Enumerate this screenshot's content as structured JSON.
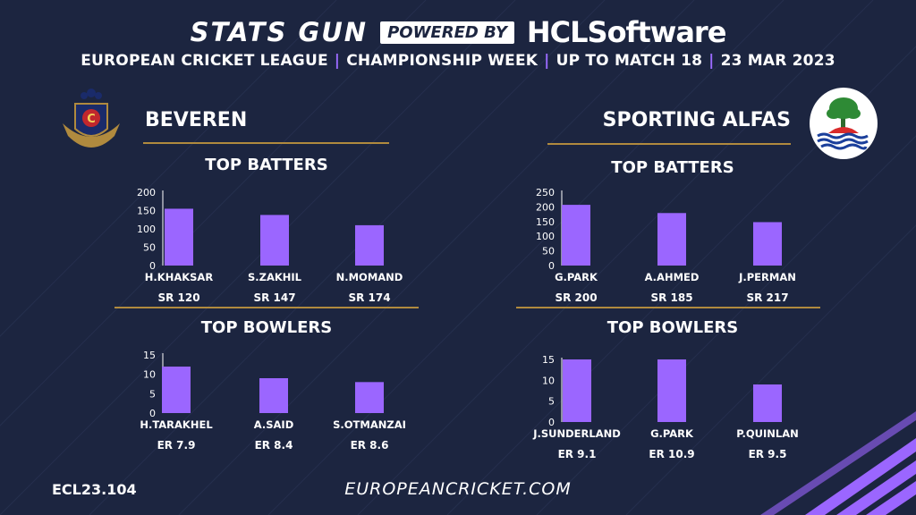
{
  "header": {
    "brand": "STATS GUN",
    "powered_by": "POWERED BY",
    "sponsor": "HCLSoftware",
    "league": "EUROPEAN CRICKET LEAGUE",
    "week": "CHAMPIONSHIP WEEK",
    "match": "UP TO MATCH  18",
    "date": "23 MAR 2023"
  },
  "teams": {
    "left": {
      "name": "BEVEREN"
    },
    "right": {
      "name": "SPORTING ALFAS"
    }
  },
  "sections": {
    "left_batters": "TOP BATTERS",
    "left_bowlers": "TOP BOWLERS",
    "right_batters": "TOP BATTERS",
    "right_bowlers": "TOP BOWLERS"
  },
  "footer": {
    "code": "ECL23.104",
    "website": "EUROPEANCRICKET.COM"
  },
  "colors": {
    "background": "#1c2540",
    "bar": "#9b66ff",
    "divider": "#b08a3e"
  },
  "chart_data": [
    {
      "type": "bar",
      "title": "TOP BATTERS",
      "team": "BEVEREN",
      "categories": [
        "H.KHAKSAR",
        "S.ZAKHIL",
        "N.MOMAND"
      ],
      "values": [
        155,
        138,
        110
      ],
      "sublabels": [
        "SR 120",
        "SR 147",
        "SR 174"
      ],
      "yticks": [
        0,
        50,
        100,
        150,
        200
      ],
      "ylim": [
        0,
        200
      ]
    },
    {
      "type": "bar",
      "title": "TOP BOWLERS",
      "team": "BEVEREN",
      "categories": [
        "H.TARAKHEL",
        "A.SAID",
        "S.OTMANZAI"
      ],
      "values": [
        12,
        9,
        8
      ],
      "sublabels": [
        "ER  7.9",
        "ER 8.4",
        "ER 8.6"
      ],
      "yticks": [
        0,
        5,
        10,
        15
      ],
      "ylim": [
        0,
        15
      ]
    },
    {
      "type": "bar",
      "title": "TOP BATTERS",
      "team": "SPORTING ALFAS",
      "categories": [
        "G.PARK",
        "A.AHMED",
        "J.PERMAN"
      ],
      "values": [
        207,
        179,
        148
      ],
      "sublabels": [
        "SR 200",
        "SR 185",
        "SR 217"
      ],
      "yticks": [
        0,
        50,
        100,
        150,
        200,
        250
      ],
      "ylim": [
        0,
        250
      ]
    },
    {
      "type": "bar",
      "title": "TOP BOWLERS",
      "team": "SPORTING ALFAS",
      "categories": [
        "J.SUNDERLAND",
        "G.PARK",
        "P.QUINLAN"
      ],
      "values": [
        15,
        15,
        9
      ],
      "sublabels": [
        "ER 9.1",
        "ER 10.9",
        "ER 9.5"
      ],
      "yticks": [
        0,
        5,
        10,
        15
      ],
      "ylim": [
        0,
        15
      ]
    }
  ]
}
